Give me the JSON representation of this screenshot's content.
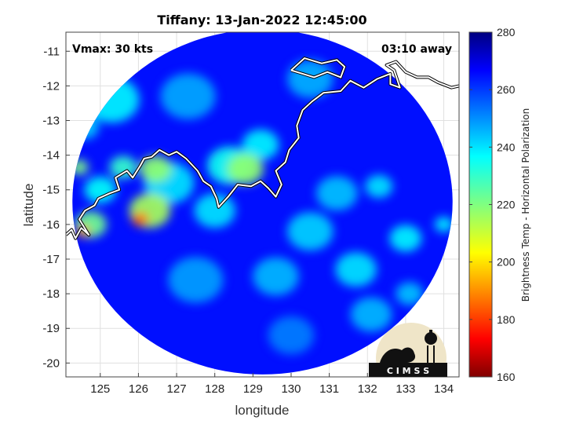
{
  "title": "Tiffany: 13-Jan-2022 12:45:00",
  "annotations": {
    "vmax": "Vmax: 30 kts",
    "time_away": "03:10 away"
  },
  "axes": {
    "xlabel": "longitude",
    "ylabel": "latitude",
    "xlim": [
      124.1,
      134.4
    ],
    "ylim": [
      -20.4,
      -10.45
    ],
    "xticks": [
      125,
      126,
      127,
      128,
      129,
      130,
      131,
      132,
      133,
      134
    ],
    "yticks": [
      -11,
      -12,
      -13,
      -14,
      -15,
      -16,
      -17,
      -18,
      -19,
      -20
    ],
    "grid": true
  },
  "colorbar": {
    "label": "Brightness Temp - Horizontal Polarization",
    "range": [
      160,
      280
    ],
    "ticks": [
      280,
      260,
      240,
      220,
      200,
      180,
      160
    ],
    "colormap": "jet"
  },
  "swath": {
    "center_lon": 129.25,
    "center_lat": -15.35,
    "radius_deg": 4.98,
    "background_temp": 265
  },
  "features": [
    {
      "lon": 126.05,
      "lat": -15.85,
      "tb": 185,
      "spread": 0.18
    },
    {
      "lon": 126.3,
      "lat": -15.6,
      "tb": 215,
      "spread": 0.45
    },
    {
      "lon": 124.55,
      "lat": -16.2,
      "tb": 190,
      "spread": 0.15
    },
    {
      "lon": 124.75,
      "lat": -16.0,
      "tb": 222,
      "spread": 0.35
    },
    {
      "lon": 124.45,
      "lat": -14.35,
      "tb": 220,
      "spread": 0.2
    },
    {
      "lon": 126.45,
      "lat": -14.4,
      "tb": 218,
      "spread": 0.35
    },
    {
      "lon": 125.6,
      "lat": -14.35,
      "tb": 230,
      "spread": 0.3
    },
    {
      "lon": 128.8,
      "lat": -14.4,
      "tb": 218,
      "spread": 0.4
    },
    {
      "lon": 128.4,
      "lat": -14.3,
      "tb": 235,
      "spread": 0.5
    },
    {
      "lon": 129.2,
      "lat": -13.7,
      "tb": 238,
      "spread": 0.4
    },
    {
      "lon": 125.3,
      "lat": -12.4,
      "tb": 238,
      "spread": 0.6
    },
    {
      "lon": 126.8,
      "lat": -14.8,
      "tb": 240,
      "spread": 0.55
    },
    {
      "lon": 130.5,
      "lat": -16.2,
      "tb": 242,
      "spread": 0.5
    },
    {
      "lon": 129.6,
      "lat": -17.5,
      "tb": 245,
      "spread": 0.5
    },
    {
      "lon": 131.7,
      "lat": -17.3,
      "tb": 240,
      "spread": 0.45
    },
    {
      "lon": 133.0,
      "lat": -16.4,
      "tb": 238,
      "spread": 0.35
    },
    {
      "lon": 131.2,
      "lat": -15.1,
      "tb": 244,
      "spread": 0.45
    },
    {
      "lon": 132.3,
      "lat": -14.9,
      "tb": 240,
      "spread": 0.3
    },
    {
      "lon": 134.0,
      "lat": -16.0,
      "tb": 238,
      "spread": 0.2
    },
    {
      "lon": 127.5,
      "lat": -17.6,
      "tb": 248,
      "spread": 0.6
    },
    {
      "lon": 132.1,
      "lat": -18.6,
      "tb": 245,
      "spread": 0.45
    },
    {
      "lon": 133.1,
      "lat": -18.0,
      "tb": 244,
      "spread": 0.3
    },
    {
      "lon": 130.5,
      "lat": -11.8,
      "tb": 246,
      "spread": 0.5
    },
    {
      "lon": 127.3,
      "lat": -12.3,
      "tb": 247,
      "spread": 0.6
    },
    {
      "lon": 128.0,
      "lat": -15.6,
      "tb": 240,
      "spread": 0.45
    },
    {
      "lon": 125.0,
      "lat": -15.0,
      "tb": 236,
      "spread": 0.35
    },
    {
      "lon": 124.6,
      "lat": -13.2,
      "tb": 242,
      "spread": 0.3
    },
    {
      "lon": 130.0,
      "lat": -19.2,
      "tb": 252,
      "spread": 0.5
    }
  ],
  "coastline": [
    [
      124.1,
      -16.3
    ],
    [
      124.25,
      -16.15
    ],
    [
      124.35,
      -16.4
    ],
    [
      124.5,
      -16.1
    ],
    [
      124.7,
      -16.3
    ],
    [
      124.45,
      -15.85
    ],
    [
      124.6,
      -15.6
    ],
    [
      124.85,
      -15.45
    ],
    [
      124.95,
      -15.25
    ],
    [
      125.25,
      -15.1
    ],
    [
      125.5,
      -15.0
    ],
    [
      125.4,
      -14.65
    ],
    [
      125.7,
      -14.45
    ],
    [
      125.85,
      -14.65
    ],
    [
      126.05,
      -14.3
    ],
    [
      126.15,
      -14.1
    ],
    [
      126.35,
      -14.05
    ],
    [
      126.55,
      -13.85
    ],
    [
      126.8,
      -14.0
    ],
    [
      127.0,
      -13.9
    ],
    [
      127.25,
      -14.1
    ],
    [
      127.55,
      -14.45
    ],
    [
      127.7,
      -14.75
    ],
    [
      127.9,
      -14.9
    ],
    [
      128.05,
      -15.25
    ],
    [
      128.1,
      -15.5
    ],
    [
      128.35,
      -15.2
    ],
    [
      128.6,
      -14.85
    ],
    [
      128.95,
      -14.9
    ],
    [
      129.2,
      -14.75
    ],
    [
      129.4,
      -14.95
    ],
    [
      129.6,
      -15.2
    ],
    [
      129.75,
      -14.85
    ],
    [
      129.6,
      -14.45
    ],
    [
      129.85,
      -14.2
    ],
    [
      129.95,
      -13.85
    ],
    [
      130.2,
      -13.5
    ],
    [
      130.15,
      -13.15
    ],
    [
      130.3,
      -12.7
    ],
    [
      130.55,
      -12.45
    ],
    [
      130.85,
      -12.2
    ],
    [
      131.3,
      -12.15
    ],
    [
      131.55,
      -11.85
    ],
    [
      131.9,
      -12.05
    ],
    [
      132.25,
      -11.8
    ],
    [
      132.6,
      -11.65
    ],
    [
      132.6,
      -11.95
    ],
    [
      132.85,
      -12.05
    ],
    [
      132.7,
      -11.55
    ],
    [
      132.5,
      -11.4
    ],
    [
      132.75,
      -11.3
    ],
    [
      133.0,
      -11.6
    ],
    [
      133.3,
      -11.75
    ],
    [
      133.6,
      -11.75
    ],
    [
      133.85,
      -11.9
    ],
    [
      134.2,
      -12.05
    ],
    [
      134.4,
      -12.0
    ]
  ],
  "islands": [
    [
      [
        130.0,
        -11.55
      ],
      [
        130.35,
        -11.2
      ],
      [
        130.8,
        -11.35
      ],
      [
        131.2,
        -11.25
      ],
      [
        131.4,
        -11.45
      ],
      [
        131.3,
        -11.75
      ],
      [
        130.95,
        -11.6
      ],
      [
        130.6,
        -11.75
      ],
      [
        130.3,
        -11.65
      ],
      [
        130.0,
        -11.55
      ]
    ]
  ],
  "logo": {
    "text": "C I M S S"
  }
}
